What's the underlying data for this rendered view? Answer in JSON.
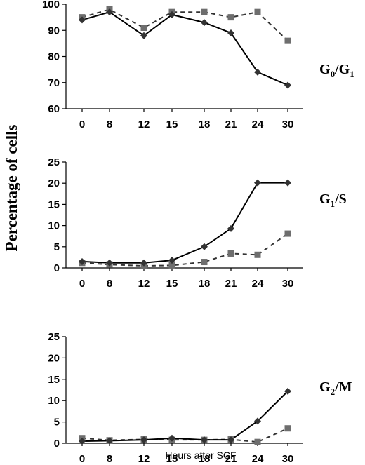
{
  "figure": {
    "ylabel": "Percentage of cells",
    "xlabel": "Hours after SCF"
  },
  "chart_data": [
    {
      "type": "line",
      "label_main": "G",
      "label_sub1": "0",
      "label_mid": "/G",
      "label_sub2": "1",
      "categories": [
        "0",
        "8",
        "12",
        "15",
        "18",
        "21",
        "24",
        "30"
      ],
      "ylim": [
        60,
        100
      ],
      "yticks": [
        "60",
        "70",
        "80",
        "90",
        "100"
      ],
      "series": [
        {
          "style": "solid",
          "marker": "diamond",
          "color": "#333333",
          "values": [
            94,
            97,
            88,
            96,
            93,
            89,
            74,
            69
          ]
        },
        {
          "style": "dashed",
          "marker": "square",
          "color": "#6e6e6e",
          "values": [
            95,
            98,
            91,
            97,
            97,
            95,
            97,
            86
          ]
        }
      ]
    },
    {
      "type": "line",
      "label_main": "G",
      "label_sub1": "1",
      "label_mid": "/S",
      "label_sub2": "",
      "categories": [
        "0",
        "8",
        "12",
        "15",
        "18",
        "21",
        "24",
        "30"
      ],
      "ylim": [
        0,
        25
      ],
      "yticks": [
        "0",
        "5",
        "10",
        "15",
        "20",
        "25"
      ],
      "series": [
        {
          "style": "solid",
          "marker": "diamond",
          "color": "#333333",
          "values": [
            1.5,
            1.2,
            1.2,
            1.8,
            5,
            9.3,
            20.1,
            20.1
          ]
        },
        {
          "style": "dashed",
          "marker": "square",
          "color": "#6e6e6e",
          "values": [
            1.2,
            0.8,
            0.5,
            0.6,
            1.4,
            3.4,
            3.1,
            8.1
          ]
        }
      ]
    },
    {
      "type": "line",
      "label_main": "G",
      "label_sub1": "2",
      "label_mid": "/M",
      "label_sub2": "",
      "categories": [
        "0",
        "8",
        "12",
        "15",
        "18",
        "21",
        "24",
        "30"
      ],
      "ylim": [
        0,
        25
      ],
      "yticks": [
        "0",
        "5",
        "10",
        "15",
        "20",
        "25"
      ],
      "series": [
        {
          "style": "solid",
          "marker": "diamond",
          "color": "#333333",
          "values": [
            0.5,
            0.6,
            0.8,
            1.2,
            0.8,
            0.8,
            5.2,
            12.2
          ]
        },
        {
          "style": "dashed",
          "marker": "square",
          "color": "#6e6e6e",
          "values": [
            1.2,
            0.7,
            0.9,
            0.8,
            0.8,
            0.9,
            0.3,
            3.5
          ]
        }
      ]
    }
  ]
}
